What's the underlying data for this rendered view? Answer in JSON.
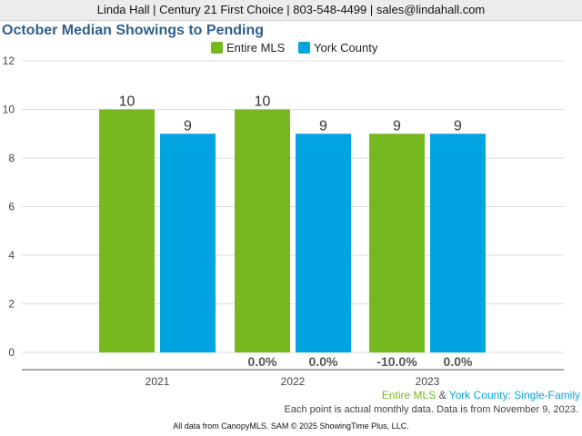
{
  "header": {
    "contact": "Linda Hall | Century 21 First Choice | 803-548-4499 | sales@lindahall.com"
  },
  "chart_data": {
    "type": "bar",
    "title": "October Median Showings to Pending",
    "categories": [
      "2021",
      "2022",
      "2023"
    ],
    "series": [
      {
        "name": "Entire MLS",
        "color": "#77b81f",
        "values": [
          10,
          10,
          9
        ],
        "changes": [
          "",
          "0.0%",
          "-10.0%"
        ]
      },
      {
        "name": "York County",
        "color": "#00a4e0",
        "values": [
          9,
          9,
          9
        ],
        "changes": [
          "",
          "0.0%",
          "0.0%"
        ]
      }
    ],
    "y_ticks": [
      0,
      2,
      4,
      6,
      8,
      10,
      12
    ],
    "ylim": [
      0,
      12
    ],
    "grid": true,
    "legend": "top-center"
  },
  "footer": {
    "series_label_1": "Entire MLS",
    "series_join": " & ",
    "series_label_2": "York County",
    "property_type": ": Single-Family",
    "note": "Each point is actual monthly data. Data is from November 9, 2023.",
    "credit": "All data from CanopyMLS. SAM © 2025 ShowingTime Plus, LLC."
  }
}
